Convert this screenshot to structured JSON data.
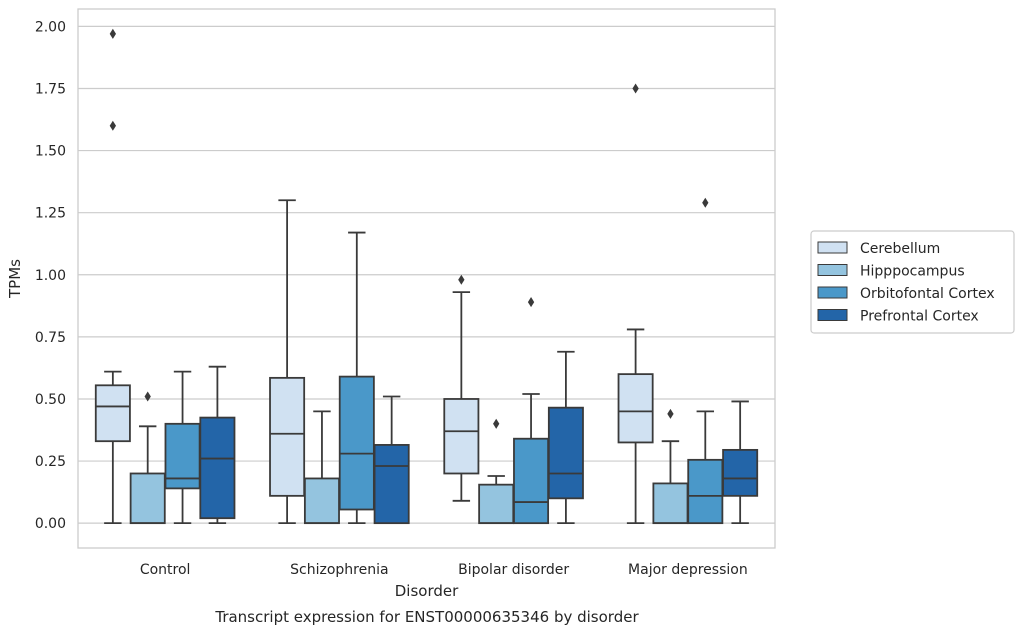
{
  "chart_data": {
    "type": "boxplot",
    "ylabel": "TPMs",
    "xlabel": "Disorder",
    "caption": "Transcript expression for ENST00000635346 by disorder",
    "ylim": [
      -0.1,
      2.07
    ],
    "yticks": [
      "0.00",
      "0.25",
      "0.50",
      "0.75",
      "1.00",
      "1.25",
      "1.50",
      "1.75",
      "2.00"
    ],
    "grid": "horizontal",
    "legend_placement": "right",
    "categories": [
      "Control",
      "Schizophrenia",
      "Bipolar disorder",
      "Major depression"
    ],
    "series": [
      {
        "name": "Cerebellum",
        "color": "#d0e1f2",
        "boxes": [
          {
            "whislo": 0.0,
            "q1": 0.33,
            "med": 0.47,
            "q3": 0.555,
            "whishi": 0.61,
            "fliers": [
              1.6,
              1.97
            ]
          },
          {
            "whislo": 0.0,
            "q1": 0.11,
            "med": 0.36,
            "q3": 0.585,
            "whishi": 1.3,
            "fliers": []
          },
          {
            "whislo": 0.09,
            "q1": 0.2,
            "med": 0.37,
            "q3": 0.5,
            "whishi": 0.93,
            "fliers": [
              0.98
            ]
          },
          {
            "whislo": 0.0,
            "q1": 0.325,
            "med": 0.45,
            "q3": 0.6,
            "whishi": 0.78,
            "fliers": [
              1.75
            ]
          }
        ]
      },
      {
        "name": "Hipppocampus",
        "color": "#94c4df",
        "boxes": [
          {
            "whislo": 0.0,
            "q1": 0.0,
            "med": 0.0,
            "q3": 0.2,
            "whishi": 0.39,
            "fliers": [
              0.51
            ]
          },
          {
            "whislo": 0.0,
            "q1": 0.0,
            "med": 0.0,
            "q3": 0.18,
            "whishi": 0.45,
            "fliers": []
          },
          {
            "whislo": 0.0,
            "q1": 0.0,
            "med": 0.0,
            "q3": 0.155,
            "whishi": 0.19,
            "fliers": [
              0.4
            ]
          },
          {
            "whislo": 0.0,
            "q1": 0.0,
            "med": 0.0,
            "q3": 0.16,
            "whishi": 0.33,
            "fliers": [
              0.44
            ]
          }
        ]
      },
      {
        "name": "Orbitofontal Cortex",
        "color": "#4a98c9",
        "boxes": [
          {
            "whislo": 0.0,
            "q1": 0.14,
            "med": 0.18,
            "q3": 0.4,
            "whishi": 0.61,
            "fliers": []
          },
          {
            "whislo": 0.0,
            "q1": 0.055,
            "med": 0.28,
            "q3": 0.59,
            "whishi": 1.17,
            "fliers": []
          },
          {
            "whislo": 0.0,
            "q1": 0.0,
            "med": 0.085,
            "q3": 0.34,
            "whishi": 0.52,
            "fliers": [
              0.89
            ]
          },
          {
            "whislo": 0.0,
            "q1": 0.0,
            "med": 0.11,
            "q3": 0.255,
            "whishi": 0.45,
            "fliers": [
              1.29
            ]
          }
        ]
      },
      {
        "name": "Prefrontal Cortex",
        "color": "#2365a8",
        "boxes": [
          {
            "whislo": 0.0,
            "q1": 0.02,
            "med": 0.26,
            "q3": 0.425,
            "whishi": 0.63,
            "fliers": []
          },
          {
            "whislo": 0.0,
            "q1": 0.0,
            "med": 0.23,
            "q3": 0.315,
            "whishi": 0.51,
            "fliers": []
          },
          {
            "whislo": 0.0,
            "q1": 0.1,
            "med": 0.2,
            "q3": 0.465,
            "whishi": 0.69,
            "fliers": []
          },
          {
            "whislo": 0.0,
            "q1": 0.11,
            "med": 0.18,
            "q3": 0.295,
            "whishi": 0.49,
            "fliers": []
          }
        ]
      }
    ]
  }
}
